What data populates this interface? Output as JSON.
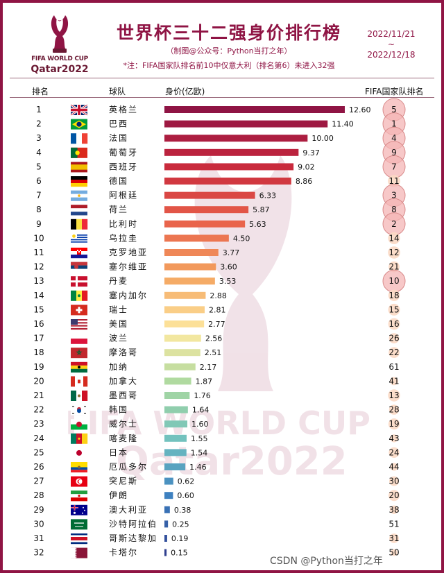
{
  "header": {
    "title": "世界杯三十二强身价排行榜",
    "subtitle": "（制图@公众号：Python当打之年）",
    "note": "*注：FIFA国家队排名前10中仅意大利（排名第6）未进入32强",
    "date_start": "2022/11/21",
    "date_sep": "~",
    "date_end": "2022/12/18"
  },
  "logo": {
    "line1": "FIFA WORLD CUP",
    "line2": "Qatar2022",
    "icon": "world-cup-trophy-icon"
  },
  "background_watermark": {
    "line1": "FIFA WORLD CUP",
    "line2": "Qatar2022"
  },
  "table_headers": {
    "rank": "排名",
    "team": "球队",
    "value": "身价(亿欧)",
    "fifa": "FIFA国家队排名"
  },
  "colors": {
    "frame": "#8f1444",
    "title": "#8f1444",
    "bar_gradient": [
      "#8f1444",
      "#c8283c",
      "#e8604a",
      "#f4a460",
      "#fde9a0",
      "#a8d8a0",
      "#6fc0c0",
      "#3c7fc0",
      "#30408f"
    ],
    "fifa_top10_fill": "#f4b6b6",
    "fifa_top10_stroke": "#d88a8a",
    "fifa_other_fill": "#fbd9c4"
  },
  "chart_data": {
    "type": "bar",
    "orientation": "horizontal",
    "ranks": [
      1,
      2,
      3,
      4,
      5,
      6,
      7,
      8,
      9,
      10,
      11,
      12,
      13,
      14,
      15,
      16,
      17,
      18,
      19,
      20,
      21,
      22,
      23,
      24,
      25,
      26,
      27,
      28,
      29,
      30,
      31,
      32
    ],
    "categories": [
      "英格兰",
      "巴西",
      "法国",
      "葡萄牙",
      "西班牙",
      "德国",
      "阿根廷",
      "荷兰",
      "比利时",
      "乌拉圭",
      "克罗地亚",
      "塞尔维亚",
      "丹麦",
      "塞内加尔",
      "瑞士",
      "美国",
      "波兰",
      "摩洛哥",
      "加纳",
      "加拿大",
      "墨西哥",
      "韩国",
      "威尔士",
      "喀麦隆",
      "日本",
      "厄瓜多尔",
      "突尼斯",
      "伊朗",
      "澳大利亚",
      "沙特阿拉伯",
      "哥斯达黎加",
      "卡塔尔"
    ],
    "values": [
      12.6,
      11.4,
      10.0,
      9.37,
      9.02,
      8.86,
      6.33,
      5.87,
      5.63,
      4.5,
      3.77,
      3.6,
      3.53,
      2.88,
      2.81,
      2.77,
      2.56,
      2.51,
      2.17,
      1.87,
      1.76,
      1.64,
      1.6,
      1.55,
      1.54,
      1.46,
      0.62,
      0.6,
      0.38,
      0.25,
      0.19,
      0.15
    ],
    "value_labels": [
      "12.60",
      "11.40",
      "10.00",
      "9.37",
      "9.02",
      "8.86",
      "6.33",
      "5.87",
      "5.63",
      "4.50",
      "3.77",
      "3.60",
      "3.53",
      "2.88",
      "2.81",
      "2.77",
      "2.56",
      "2.51",
      "2.17",
      "1.87",
      "1.76",
      "1.64",
      "1.60",
      "1.55",
      "1.54",
      "1.46",
      "0.62",
      "0.60",
      "0.38",
      "0.25",
      "0.19",
      "0.15"
    ],
    "fifa_rank": [
      5,
      1,
      4,
      9,
      7,
      11,
      3,
      8,
      2,
      14,
      12,
      21,
      10,
      18,
      15,
      16,
      26,
      22,
      61,
      41,
      13,
      28,
      19,
      43,
      24,
      44,
      30,
      20,
      38,
      51,
      31,
      50
    ],
    "flags": [
      "gb",
      "br",
      "fr",
      "pt",
      "es",
      "de",
      "ar",
      "nl",
      "be",
      "uy",
      "hr",
      "rs",
      "dk",
      "sn",
      "ch",
      "us",
      "pl",
      "ma",
      "gh",
      "ca",
      "mx",
      "kr",
      "wales",
      "cm",
      "jp",
      "ec",
      "tn",
      "ir",
      "au",
      "sa",
      "cr",
      "qa"
    ],
    "xlabel": "身价(亿欧)",
    "xlim": [
      0,
      12.6
    ],
    "grid": false,
    "legend": "none"
  },
  "footer": {
    "watermark": "CSDN @Python当打之年"
  }
}
